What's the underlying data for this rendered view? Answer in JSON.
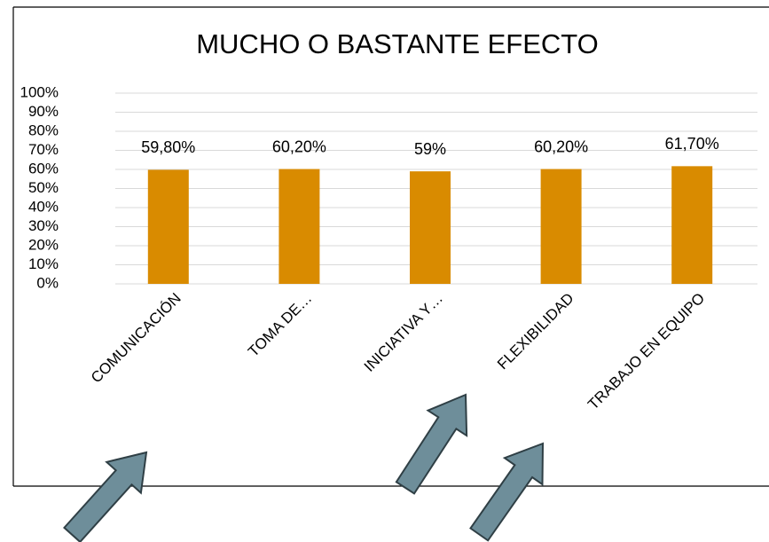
{
  "chart_data": {
    "type": "bar",
    "title": "MUCHO O BASTANTE EFECTO",
    "categories": [
      "COMUNICACIÓN",
      "TOMA DE…",
      "INICIATIVA Y…",
      "FLEXIBILIDAD",
      "TRABAJO EN EQUIPO"
    ],
    "values": [
      59.8,
      60.2,
      59,
      60.2,
      61.7
    ],
    "value_labels": [
      "59,80%",
      "60,20%",
      "59%",
      "60,20%",
      "61,70%"
    ],
    "color": "#d98b00",
    "ylim": [
      0,
      100
    ],
    "yticks": [
      {
        "value": 0,
        "label": "0%"
      },
      {
        "value": 10,
        "label": "10%"
      },
      {
        "value": 20,
        "label": "20%"
      },
      {
        "value": 30,
        "label": "30%"
      },
      {
        "value": 40,
        "label": "40%"
      },
      {
        "value": 50,
        "label": "50%"
      },
      {
        "value": 60,
        "label": "60%"
      },
      {
        "value": 70,
        "label": "70%"
      },
      {
        "value": 80,
        "label": "80%"
      },
      {
        "value": 90,
        "label": "90%"
      },
      {
        "value": 100,
        "label": "100%"
      }
    ],
    "grid": true
  }
}
